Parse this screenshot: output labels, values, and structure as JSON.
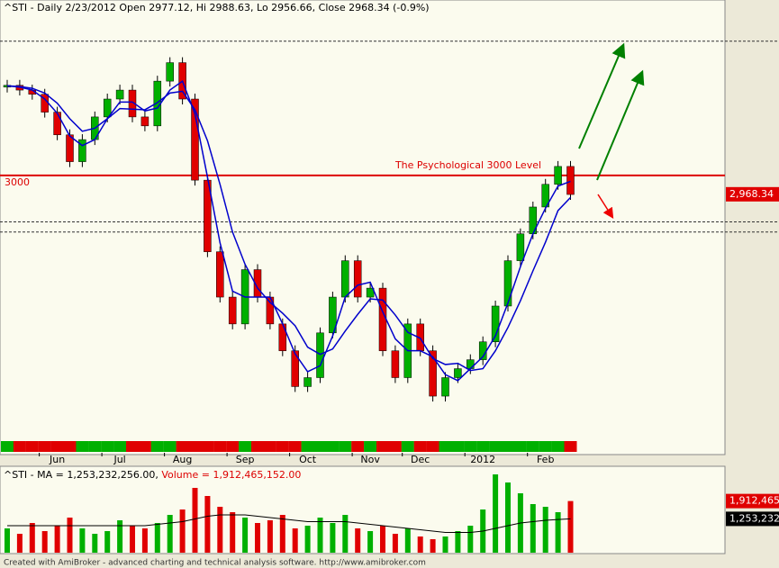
{
  "chart_data": {
    "type": "stock",
    "title": "^STI - Daily 2/23/2012 Open 2977.12, Hi 2988.63, Lo 2956.66, Close 2968.34 (-0.9%)",
    "categories": [
      null,
      null,
      null,
      null,
      "Jun",
      null,
      null,
      null,
      null,
      "Jul",
      null,
      null,
      null,
      null,
      "Aug",
      null,
      null,
      null,
      null,
      "Sep",
      null,
      null,
      null,
      null,
      "Oct",
      null,
      null,
      null,
      null,
      "Nov",
      null,
      null,
      null,
      "Dec",
      null,
      null,
      null,
      null,
      "2012",
      null,
      null,
      null,
      null,
      "Feb",
      null,
      null
    ],
    "close": [
      3151,
      3143,
      3136,
      3106,
      3068,
      3023,
      3060,
      3098,
      3128,
      3143,
      3098,
      3083,
      3158,
      3189,
      3128,
      2992,
      2872,
      2796,
      2751,
      2842,
      2796,
      2751,
      2706,
      2646,
      2661,
      2736,
      2796,
      2857,
      2796,
      2811,
      2706,
      2661,
      2751,
      2706,
      2630,
      2661,
      2676,
      2691,
      2721,
      2781,
      2857,
      2902,
      2947,
      2985,
      3015,
      2968
    ],
    "up_color": "#00b000",
    "down_color": "#e00000",
    "series": [
      {
        "color": "#0000cc",
        "values": [
          3150,
          3148,
          3143,
          3128,
          3104,
          3066,
          3050,
          3060,
          3095,
          3123,
          3123,
          3108,
          3113,
          3143,
          3158,
          3103,
          2997,
          2887,
          2806,
          2796,
          2796,
          2796,
          2751,
          2701,
          2671,
          2681,
          2731,
          2796,
          2816,
          2821,
          2771,
          2726,
          2706,
          2706,
          2696,
          2666,
          2656,
          2676,
          2696,
          2731,
          2786,
          2847,
          2902,
          2945,
          2982,
          2990
        ]
      },
      {
        "color": "#0000cc",
        "values": [
          3150,
          3149,
          3146,
          3138,
          3121,
          3095,
          3074,
          3079,
          3095,
          3112,
          3111,
          3110,
          3122,
          3138,
          3141,
          3110,
          3058,
          2985,
          2905,
          2851,
          2811,
          2787,
          2769,
          2748,
          2712,
          2700,
          2709,
          2739,
          2767,
          2793,
          2791,
          2766,
          2737,
          2727,
          2693,
          2683,
          2685,
          2673,
          2676,
          2706,
          2745,
          2790,
          2840,
          2888,
          2941,
          2963
        ]
      }
    ],
    "ylim": [
      2532,
      3294
    ],
    "yticks": [
      3000
    ],
    "ref_line": {
      "value": 3000,
      "label": "The Psychological 3000 Level",
      "color": "#dd0000"
    },
    "dashed_levels": [
      3225,
      2922,
      2905
    ],
    "last_price": {
      "value": 2968.34,
      "label": "2,968.34"
    },
    "volume": {
      "header_ma": "^STI - MA = 1,253,232,256.00,",
      "header_volume": "Volume = 1,912,465,152.00",
      "values": [
        900000000,
        700000000,
        1100000000,
        800000000,
        1000000000,
        1300000000,
        900000000,
        700000000,
        800000000,
        1200000000,
        1000000000,
        900000000,
        1100000000,
        1400000000,
        1600000000,
        2400000000,
        2100000000,
        1700000000,
        1500000000,
        1300000000,
        1100000000,
        1200000000,
        1400000000,
        900000000,
        1000000000,
        1300000000,
        1100000000,
        1400000000,
        900000000,
        800000000,
        1000000000,
        700000000,
        900000000,
        600000000,
        500000000,
        600000000,
        800000000,
        1000000000,
        1600000000,
        2900000000,
        2600000000,
        2200000000,
        1800000000,
        1700000000,
        1500000000,
        1912465152
      ],
      "ma": [
        1000000000,
        1000000000,
        1000000000,
        1000000000,
        1000000000,
        1000000000,
        1000000000,
        1000000000,
        1000000000,
        1000000000,
        1000000000,
        1000000000,
        1050000000,
        1100000000,
        1150000000,
        1250000000,
        1350000000,
        1400000000,
        1400000000,
        1400000000,
        1350000000,
        1300000000,
        1250000000,
        1200000000,
        1150000000,
        1150000000,
        1150000000,
        1150000000,
        1100000000,
        1050000000,
        1000000000,
        950000000,
        900000000,
        850000000,
        800000000,
        750000000,
        750000000,
        750000000,
        800000000,
        900000000,
        1000000000,
        1100000000,
        1150000000,
        1200000000,
        1230000000,
        1253232256
      ],
      "ylim": [
        0,
        3200000000
      ],
      "yticks": [
        {
          "value": 1912465152,
          "label": "1,912,465"
        },
        {
          "value": 1253232256,
          "label": "1,253,232"
        }
      ]
    },
    "footer": "Created with AmiBroker - advanced charting and technical analysis software. http://www.amibroker.com"
  }
}
